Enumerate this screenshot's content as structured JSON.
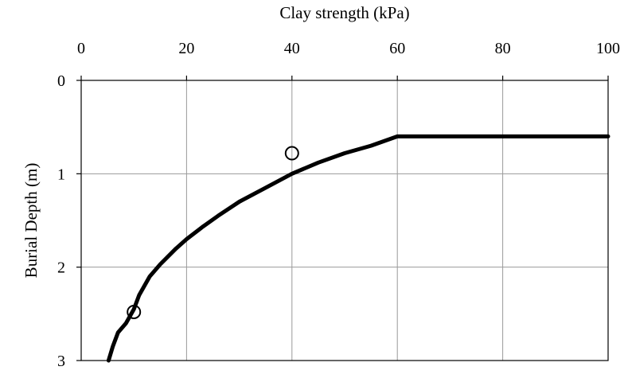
{
  "chart_data": {
    "type": "line",
    "title": "",
    "xlabel": "Clay strength (kPa)",
    "ylabel": "Burial Depth (m)",
    "x_axis_position": "top",
    "y_axis_inverted": true,
    "xlim": [
      0,
      100
    ],
    "ylim": [
      0,
      3
    ],
    "x_ticks": [
      "0",
      "20",
      "40",
      "60",
      "80",
      "100"
    ],
    "y_ticks": [
      "0",
      "1",
      "2",
      "3"
    ],
    "grid": true,
    "legend": "none",
    "series": [
      {
        "marker": "none",
        "color": "#000000",
        "points": [
          {
            "x": 5.2,
            "y": 3.0
          },
          {
            "x": 6.0,
            "y": 2.85
          },
          {
            "x": 7.0,
            "y": 2.7
          },
          {
            "x": 8.5,
            "y": 2.6
          },
          {
            "x": 10.0,
            "y": 2.45
          },
          {
            "x": 11.0,
            "y": 2.3
          },
          {
            "x": 13.0,
            "y": 2.1
          },
          {
            "x": 15.0,
            "y": 1.97
          },
          {
            "x": 18.0,
            "y": 1.8
          },
          {
            "x": 20.0,
            "y": 1.7
          },
          {
            "x": 23.0,
            "y": 1.57
          },
          {
            "x": 26.0,
            "y": 1.45
          },
          {
            "x": 30.0,
            "y": 1.3
          },
          {
            "x": 35.0,
            "y": 1.15
          },
          {
            "x": 40.0,
            "y": 1.0
          },
          {
            "x": 45.0,
            "y": 0.88
          },
          {
            "x": 50.0,
            "y": 0.78
          },
          {
            "x": 55.0,
            "y": 0.7
          },
          {
            "x": 60.0,
            "y": 0.6
          },
          {
            "x": 100.0,
            "y": 0.6
          }
        ]
      },
      {
        "marker": "open-circle",
        "color": "#000000",
        "points": [
          {
            "x": 10.0,
            "y": 2.48
          },
          {
            "x": 40.0,
            "y": 0.78
          }
        ]
      }
    ]
  }
}
